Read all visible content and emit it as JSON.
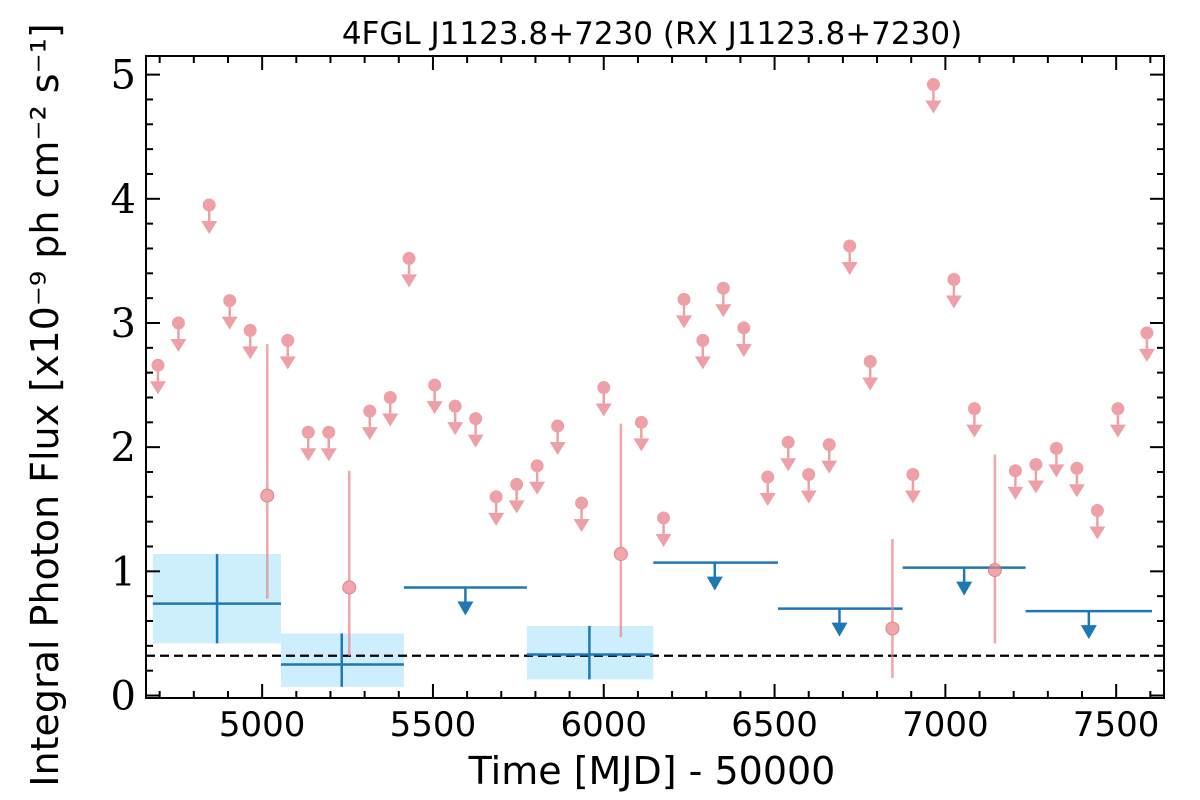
{
  "chart_data": {
    "type": "scatter",
    "title": "4FGL J1123.8+7230 (RX J1123.8+7230)",
    "xlabel": "Time [MJD] - 50000",
    "ylabel": "Integral Photon Flux [x10⁻⁹ ph cm⁻² s⁻¹]",
    "xlim": [
      4660,
      7640
    ],
    "ylim": [
      -0.02,
      5.15
    ],
    "x_ticks": [
      "5000",
      "5500",
      "6000",
      "6500",
      "7000",
      "7500"
    ],
    "y_ticks": [
      "0",
      "1",
      "2",
      "3",
      "4",
      "5"
    ],
    "grid": false,
    "colors": {
      "short_bins": "#e8868c",
      "long_bins": "#1f77b4",
      "long_bins_band": "#cdeefc",
      "reference_line": "#000000"
    },
    "reference_line": {
      "y": 0.32,
      "style": "dashed"
    },
    "series": [
      {
        "kind": "short-bin-upper-limits",
        "points": [
          {
            "x": 4695,
            "y": 2.66
          },
          {
            "x": 4755,
            "y": 3.0
          },
          {
            "x": 4845,
            "y": 3.95
          },
          {
            "x": 4905,
            "y": 3.18
          },
          {
            "x": 4965,
            "y": 2.94
          },
          {
            "x": 5075,
            "y": 2.86
          },
          {
            "x": 5135,
            "y": 2.12
          },
          {
            "x": 5195,
            "y": 2.12
          },
          {
            "x": 5315,
            "y": 2.29
          },
          {
            "x": 5375,
            "y": 2.4
          },
          {
            "x": 5430,
            "y": 3.52
          },
          {
            "x": 5505,
            "y": 2.5
          },
          {
            "x": 5565,
            "y": 2.33
          },
          {
            "x": 5625,
            "y": 2.23
          },
          {
            "x": 5685,
            "y": 1.6
          },
          {
            "x": 5745,
            "y": 1.7
          },
          {
            "x": 5805,
            "y": 1.85
          },
          {
            "x": 5865,
            "y": 2.17
          },
          {
            "x": 5935,
            "y": 1.55
          },
          {
            "x": 6000,
            "y": 2.48
          },
          {
            "x": 6110,
            "y": 2.2
          },
          {
            "x": 6175,
            "y": 1.43
          },
          {
            "x": 6235,
            "y": 3.19
          },
          {
            "x": 6290,
            "y": 2.86
          },
          {
            "x": 6350,
            "y": 3.28
          },
          {
            "x": 6410,
            "y": 2.96
          },
          {
            "x": 6480,
            "y": 1.76
          },
          {
            "x": 6540,
            "y": 2.04
          },
          {
            "x": 6600,
            "y": 1.78
          },
          {
            "x": 6660,
            "y": 2.02
          },
          {
            "x": 6720,
            "y": 3.62
          },
          {
            "x": 6780,
            "y": 2.69
          },
          {
            "x": 6905,
            "y": 1.78
          },
          {
            "x": 6965,
            "y": 4.92
          },
          {
            "x": 7025,
            "y": 3.35
          },
          {
            "x": 7085,
            "y": 2.31
          },
          {
            "x": 7205,
            "y": 1.81
          },
          {
            "x": 7265,
            "y": 1.86
          },
          {
            "x": 7325,
            "y": 1.99
          },
          {
            "x": 7385,
            "y": 1.83
          },
          {
            "x": 7445,
            "y": 1.49
          },
          {
            "x": 7505,
            "y": 2.31
          },
          {
            "x": 7590,
            "y": 2.92
          }
        ]
      },
      {
        "kind": "short-bin-detections",
        "points": [
          {
            "x": 5015,
            "y": 1.61,
            "ylow": 0.78,
            "yhigh": 2.83
          },
          {
            "x": 5255,
            "y": 0.87,
            "ylow": 0.32,
            "yhigh": 1.81
          },
          {
            "x": 6050,
            "y": 1.14,
            "ylow": 0.47,
            "yhigh": 2.19
          },
          {
            "x": 6845,
            "y": 0.54,
            "ylow": 0.14,
            "yhigh": 1.26
          },
          {
            "x": 7145,
            "y": 1.01,
            "ylow": 0.42,
            "yhigh": 1.94
          }
        ]
      },
      {
        "kind": "long-bin-detections",
        "points": [
          {
            "x": 4868,
            "xmin": 4680,
            "xmax": 5055,
            "y": 0.74,
            "ylow": 0.42,
            "yhigh": 1.14
          },
          {
            "x": 5233,
            "xmin": 5055,
            "xmax": 5415,
            "y": 0.25,
            "ylow": 0.07,
            "yhigh": 0.5
          },
          {
            "x": 5958,
            "xmin": 5775,
            "xmax": 6145,
            "y": 0.33,
            "ylow": 0.13,
            "yhigh": 0.56
          }
        ]
      },
      {
        "kind": "long-bin-upper-limits",
        "points": [
          {
            "x": 5595,
            "xmin": 5415,
            "xmax": 5775,
            "y": 0.87
          },
          {
            "x": 6325,
            "xmin": 6145,
            "xmax": 6510,
            "y": 1.07
          },
          {
            "x": 6690,
            "xmin": 6510,
            "xmax": 6875,
            "y": 0.7
          },
          {
            "x": 7055,
            "xmin": 6875,
            "xmax": 7235,
            "y": 1.03
          },
          {
            "x": 7420,
            "xmin": 7235,
            "xmax": 7605,
            "y": 0.68
          }
        ]
      }
    ]
  }
}
